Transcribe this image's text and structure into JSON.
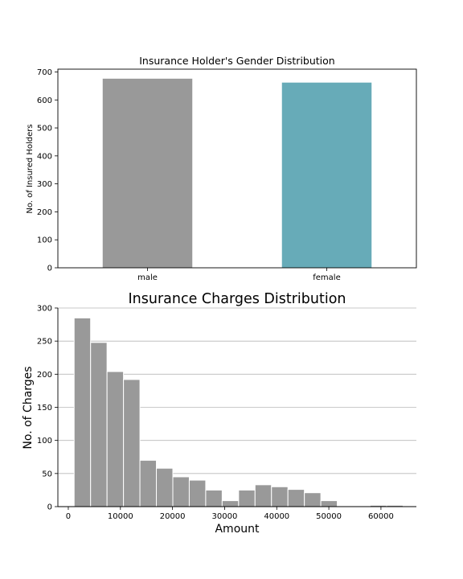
{
  "chart_data": [
    {
      "type": "bar",
      "title": "Insurance Holder's Gender Distribution",
      "xlabel": "",
      "ylabel": "No. of Insured Holders",
      "categories": [
        "male",
        "female"
      ],
      "values": [
        676,
        662
      ],
      "colors": [
        "#999999",
        "#67abb8"
      ],
      "ylim": [
        0,
        710
      ],
      "yticks": [
        0,
        100,
        200,
        300,
        400,
        500,
        600,
        700
      ],
      "grid": false
    },
    {
      "type": "bar",
      "title": "Insurance Charges Distribution",
      "xlabel": "Amount",
      "ylabel": "No. of Charges",
      "bin_start": 1122,
      "bin_width": 3156,
      "values": [
        285,
        248,
        204,
        192,
        70,
        58,
        45,
        40,
        25,
        9,
        25,
        33,
        30,
        26,
        21,
        9,
        0,
        0,
        2,
        2
      ],
      "color": "#999999",
      "xlim": [
        -2000,
        66800
      ],
      "ylim": [
        0,
        300
      ],
      "xticks": [
        0,
        10000,
        20000,
        30000,
        40000,
        50000,
        60000
      ],
      "yticks": [
        0,
        50,
        100,
        150,
        200,
        250,
        300
      ],
      "grid": "y"
    }
  ]
}
